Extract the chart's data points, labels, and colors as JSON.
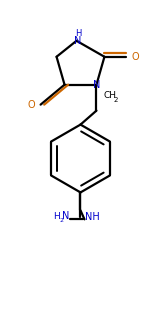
{
  "bg_color": "#ffffff",
  "bond_color": "#000000",
  "atom_color_N": "#0000cc",
  "atom_color_O": "#cc6600",
  "line_width": 1.6,
  "figsize": [
    1.61,
    3.21
  ],
  "dpi": 100,
  "xlim": [
    0,
    8
  ],
  "ylim": [
    0,
    16
  ]
}
